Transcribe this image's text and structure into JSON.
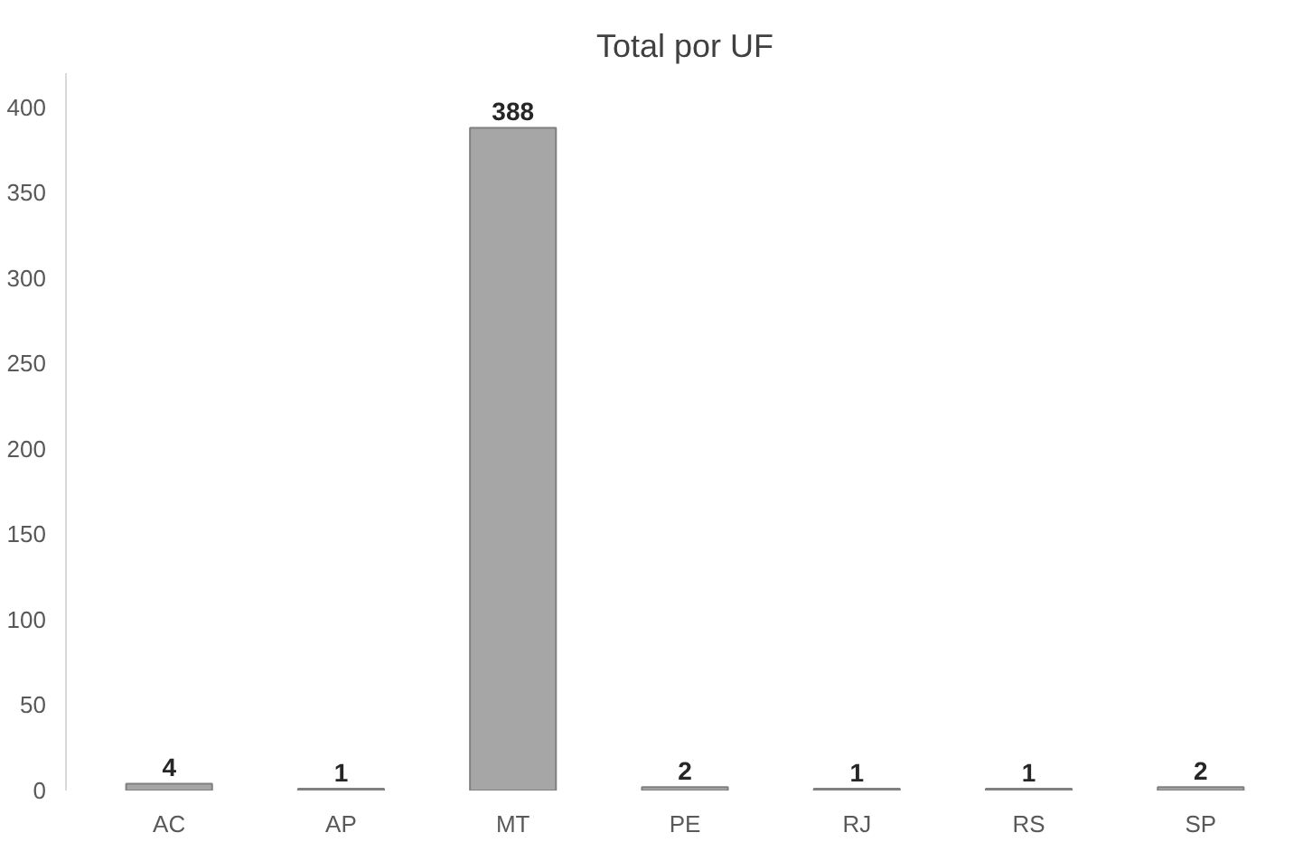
{
  "chart_data": {
    "type": "bar",
    "title": "Total por UF",
    "categories": [
      "AC",
      "AP",
      "MT",
      "PE",
      "RJ",
      "RS",
      "SP"
    ],
    "values": [
      4,
      1,
      388,
      2,
      1,
      1,
      2
    ],
    "color": "#a6a6a6",
    "ylim": [
      0,
      420
    ],
    "yticks": [
      0,
      50,
      100,
      150,
      200,
      250,
      300,
      350,
      400
    ],
    "grid": false,
    "data_labels": true
  }
}
